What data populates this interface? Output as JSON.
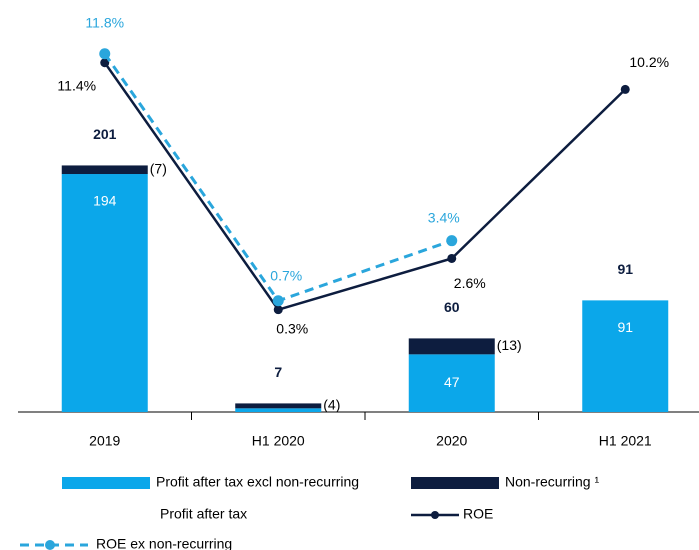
{
  "chart_data": {
    "type": "bar",
    "categories": [
      "2019",
      "H1 2020",
      "2020",
      "H1 2021"
    ],
    "ylim": [
      0,
      300
    ],
    "y2lim": [
      -4.3,
      12.24
    ],
    "series": [
      {
        "name": "Profit after tax excl non-recurring",
        "color": "#0ba7ea",
        "values": [
          194,
          3,
          47,
          91
        ],
        "value_labels": [
          "194",
          null,
          "47",
          "91"
        ]
      },
      {
        "name": "Non-recurring ¹",
        "color": "#0d1d3f",
        "values": [
          7,
          4,
          13,
          null
        ],
        "value_labels": [
          "(7)",
          "(4)",
          "(13)",
          null
        ]
      },
      {
        "name": "Profit after tax",
        "values": [
          201,
          7,
          60,
          91
        ]
      },
      {
        "name": "ROE",
        "type": "line",
        "axis": "y2",
        "color": "#0d1d3f",
        "values": [
          11.4,
          0.3,
          2.6,
          10.2
        ],
        "value_labels": [
          "11.4%",
          "0.3%",
          "2.6%",
          "10.2%"
        ]
      },
      {
        "name": "ROE ex non-recurring",
        "type": "line",
        "axis": "y2",
        "dashed": true,
        "color": "#2aa6dc",
        "values": [
          11.8,
          0.7,
          3.4,
          null
        ],
        "value_labels": [
          "11.8%",
          "0.7%",
          "3.4%",
          null
        ]
      }
    ]
  }
}
